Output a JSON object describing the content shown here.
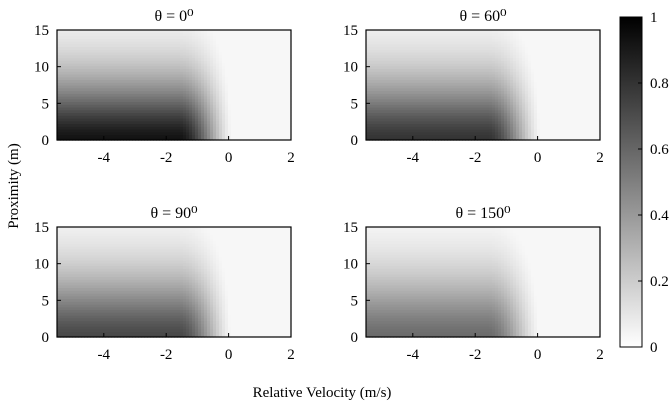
{
  "figure": {
    "ylabel": "Proximity (m)",
    "xlabel": "Relative Velocity (m/s)"
  },
  "colorbar": {
    "ticks": [
      "0",
      "0.2",
      "0.4",
      "0.6",
      "0.8",
      "1"
    ],
    "colormap": "gray (white = 0, black = 1)"
  },
  "chart_data": [
    {
      "type": "heatmap",
      "title": "θ = 0⁰",
      "x_range": [
        -5.5,
        2
      ],
      "y_range": [
        0,
        15
      ],
      "x_ticks": [
        "-4",
        "-2",
        "0",
        "2"
      ],
      "y_ticks": [
        "0",
        "5",
        "10",
        "15"
      ],
      "peak_value": 0.93,
      "description": "value highest at low proximity and negative relative velocity; fades toward 0 for proximity > 10 m or velocity > 0"
    },
    {
      "type": "heatmap",
      "title": "θ = 60⁰",
      "x_range": [
        -5.5,
        2
      ],
      "y_range": [
        0,
        15
      ],
      "x_ticks": [
        "-4",
        "-2",
        "0",
        "2"
      ],
      "y_ticks": [
        "0",
        "5",
        "10",
        "15"
      ],
      "peak_value": 0.8
    },
    {
      "type": "heatmap",
      "title": "θ = 90⁰",
      "x_range": [
        -5.5,
        2
      ],
      "y_range": [
        0,
        15
      ],
      "x_ticks": [
        "-4",
        "-2",
        "0",
        "2"
      ],
      "y_ticks": [
        "0",
        "5",
        "10",
        "15"
      ],
      "peak_value": 0.72
    },
    {
      "type": "heatmap",
      "title": "θ = 150⁰",
      "x_range": [
        -5.5,
        2
      ],
      "y_range": [
        0,
        15
      ],
      "x_ticks": [
        "-4",
        "-2",
        "0",
        "2"
      ],
      "y_ticks": [
        "0",
        "5",
        "10",
        "15"
      ],
      "peak_value": 0.58
    }
  ]
}
